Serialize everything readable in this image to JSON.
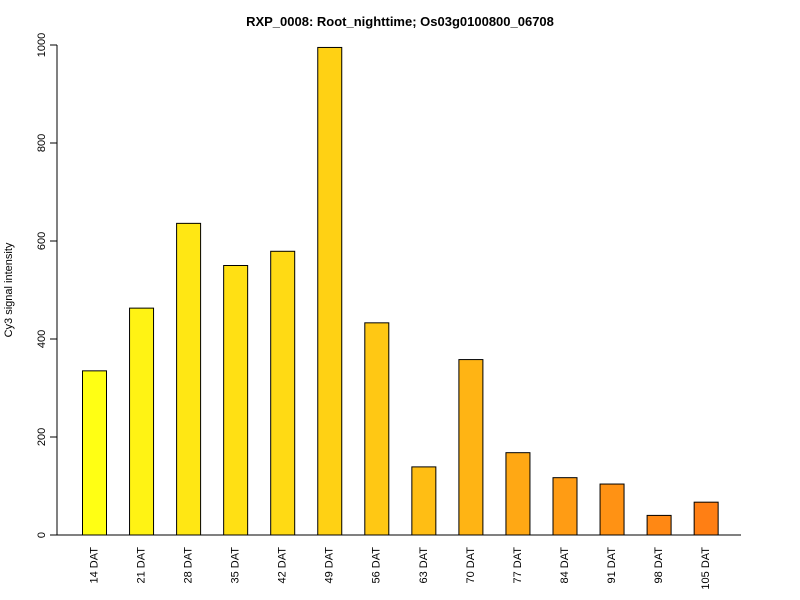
{
  "chart_data": {
    "type": "bar",
    "title": "RXP_0008: Root_nighttime; Os03g0100800_06708",
    "xlabel": "",
    "ylabel": "Cy3 signal intensity",
    "ylim": [
      0,
      1000
    ],
    "yticks": [
      0,
      200,
      400,
      600,
      800,
      1000
    ],
    "grid": false,
    "legend": "none",
    "categories": [
      "14 DAT",
      "21 DAT",
      "28 DAT",
      "35 DAT",
      "42 DAT",
      "49 DAT",
      "56 DAT",
      "63 DAT",
      "70 DAT",
      "77 DAT",
      "84 DAT",
      "91 DAT",
      "98 DAT",
      "105 DAT"
    ],
    "values": [
      335,
      463,
      636,
      550,
      579,
      995,
      433,
      139,
      358,
      168,
      117,
      104,
      40,
      67
    ],
    "colors": [
      "#FFFF14",
      "#FFF314",
      "#FFE714",
      "#FFE014",
      "#FFDA14",
      "#FFD114",
      "#FFC814",
      "#FFBE14",
      "#FFB414",
      "#FFA814",
      "#FF9C14",
      "#FF9214",
      "#FF8814",
      "#FF7F14"
    ]
  }
}
